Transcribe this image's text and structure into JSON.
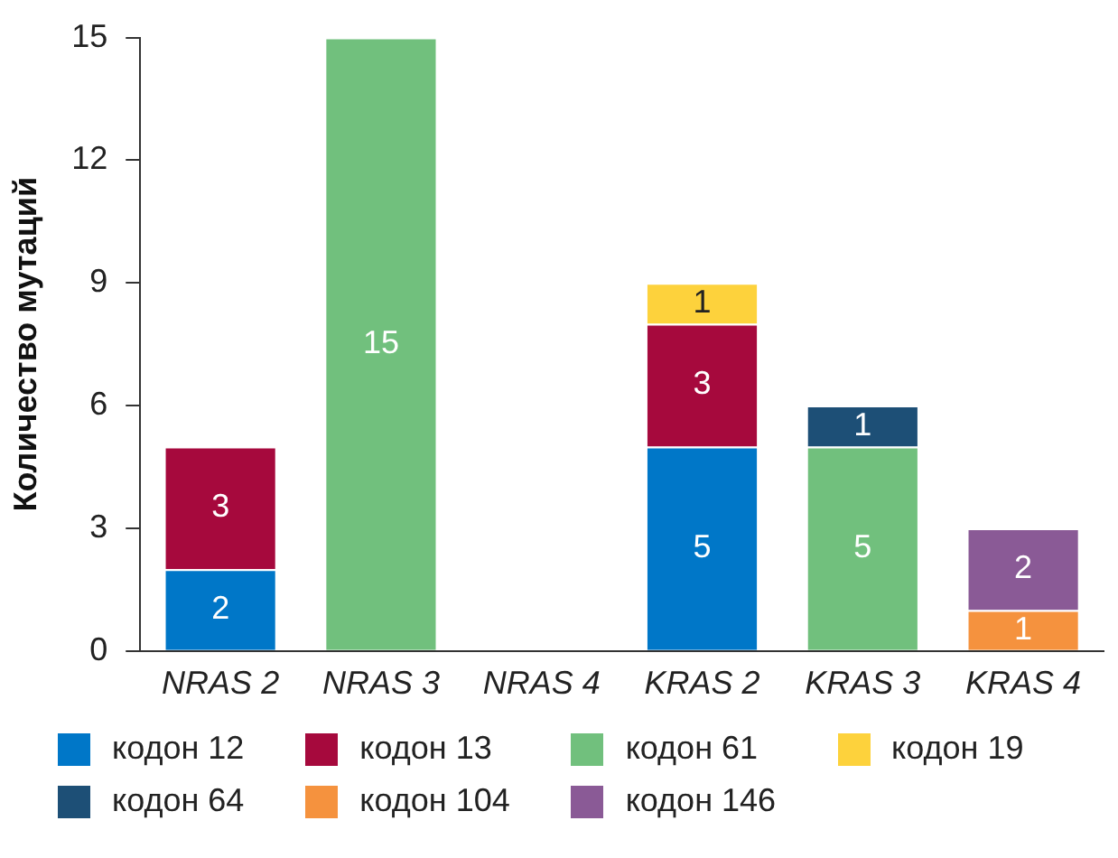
{
  "chart_data": {
    "type": "bar",
    "stacked": true,
    "ylabel": "Количество мутаций",
    "categories": [
      "NRAS 2",
      "NRAS 3",
      "NRAS 4",
      "KRAS 2",
      "KRAS 3",
      "KRAS 4"
    ],
    "series": [
      {
        "name": "кодон 12",
        "color": "#0077c8",
        "values": [
          2,
          null,
          null,
          5,
          null,
          null
        ]
      },
      {
        "name": "кодон 13",
        "color": "#a6093d",
        "values": [
          3,
          null,
          null,
          3,
          null,
          null
        ]
      },
      {
        "name": "кодон 61",
        "color": "#71c07d",
        "values": [
          null,
          15,
          null,
          null,
          5,
          null
        ]
      },
      {
        "name": "кодон 19",
        "color": "#fdd23c",
        "values": [
          null,
          null,
          null,
          1,
          null,
          null
        ]
      },
      {
        "name": "кодон 64",
        "color": "#1d4f76",
        "values": [
          null,
          null,
          null,
          null,
          1,
          null
        ]
      },
      {
        "name": "кодон 104",
        "color": "#f5923e",
        "values": [
          null,
          null,
          null,
          null,
          null,
          1
        ]
      },
      {
        "name": "кодон 146",
        "color": "#8a5a96",
        "values": [
          null,
          null,
          null,
          null,
          null,
          2
        ]
      }
    ],
    "ylim": [
      0,
      15
    ],
    "yticks": [
      0,
      3,
      6,
      9,
      12,
      15
    ],
    "grid": false,
    "legend": "bottom",
    "data_labels": true
  }
}
